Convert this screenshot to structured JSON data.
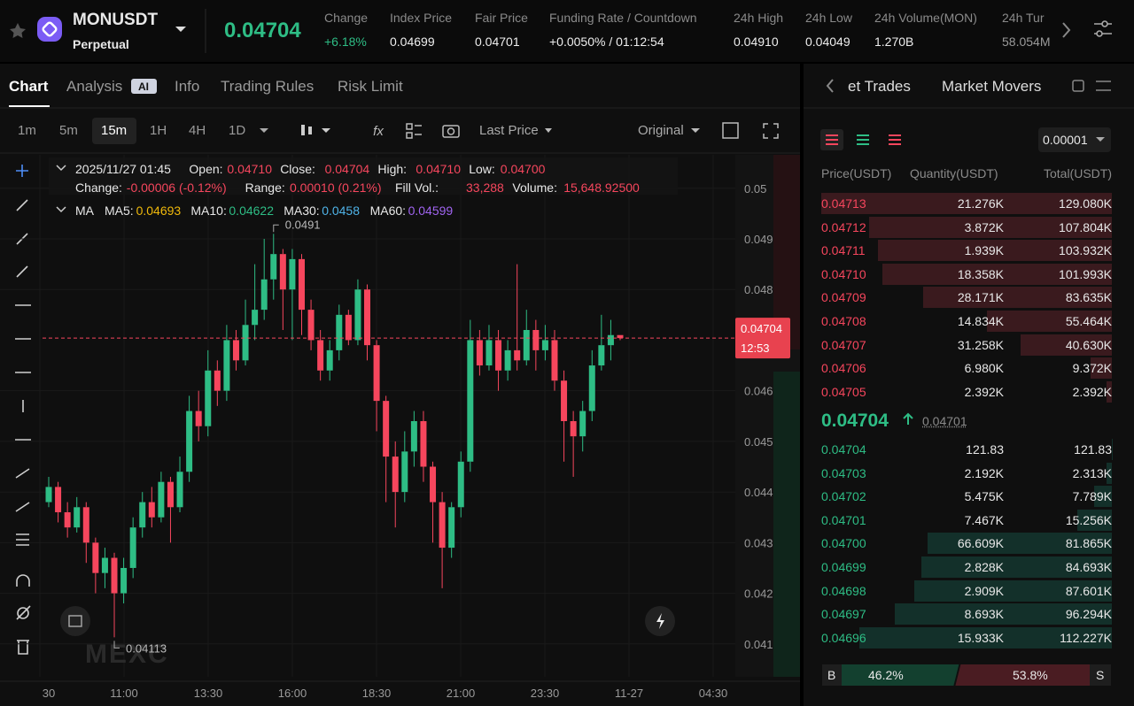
{
  "header": {
    "symbol": "MONUSDT",
    "contract": "Perpetual",
    "last_price": "0.04704",
    "stats": [
      {
        "label": "Change",
        "value": "+6.18%"
      },
      {
        "label": "Index Price",
        "value": "0.04699"
      },
      {
        "label": "Fair Price",
        "value": "0.04701"
      },
      {
        "label": "Funding Rate / Countdown",
        "value": "+0.0050%  /  01:12:54"
      },
      {
        "label": "24h High",
        "value": "0.04910"
      },
      {
        "label": "24h Low",
        "value": "0.04049"
      },
      {
        "label": "24h Volume(MON)",
        "value": "1.270B"
      },
      {
        "label": "24h Tur",
        "value": "58.054M"
      }
    ]
  },
  "tabs": [
    "Chart",
    "Analysis",
    "Info",
    "Trading Rules",
    "Risk Limit"
  ],
  "toolbar": {
    "intervals": [
      "1m",
      "5m",
      "15m",
      "1H",
      "4H",
      "1D"
    ],
    "price_type": "Last Price",
    "view": "Original"
  },
  "chart_info": {
    "time": "2025/11/27 01:45",
    "row1": [
      [
        "Open:",
        "0.04710"
      ],
      [
        "Close:",
        "0.04704"
      ],
      [
        "High:",
        "0.04710"
      ],
      [
        "Low:",
        "0.04700"
      ]
    ],
    "row2": [
      [
        "Change:",
        "-0.00006 (-0.12%)"
      ],
      [
        "Range:",
        "0.00010 (0.21%)"
      ],
      [
        "Fill Vol.:",
        "33,288"
      ],
      [
        "Volume:",
        "15,648.92500"
      ]
    ],
    "ma_title": "MA",
    "ma": [
      [
        "MA5:",
        "0.04693",
        "#f0b90b"
      ],
      [
        "MA10:",
        "0.04622",
        "#2ebd85"
      ],
      [
        "MA30:",
        "0.0458",
        "#4fb3e8"
      ],
      [
        "MA60:",
        "0.04599",
        "#a064f0"
      ]
    ],
    "watermark": "MEXC"
  },
  "chart_data": {
    "type": "candlestick",
    "open": [
      0.0438,
      0.0441,
      0.0436,
      0.0433,
      0.0437,
      0.043,
      0.0424,
      0.0427,
      0.042,
      0.0425,
      0.0433,
      0.0438,
      0.0435,
      0.0442,
      0.0437,
      0.0444,
      0.0456,
      0.0453,
      0.0464,
      0.046,
      0.047,
      0.0466,
      0.0473,
      0.0476,
      0.0482,
      0.0487,
      0.048,
      0.0486,
      0.0476,
      0.047,
      0.0464,
      0.0468,
      0.0475,
      0.047,
      0.048,
      0.0469,
      0.0458,
      0.0447,
      0.044,
      0.0448,
      0.0454,
      0.0445,
      0.0438,
      0.0429,
      0.0437,
      0.0446,
      0.047,
      0.0465,
      0.047,
      0.0464,
      0.0468,
      0.0466,
      0.0472,
      0.0468,
      0.047,
      0.0462,
      0.0454,
      0.0451,
      0.0456,
      0.0465,
      0.0469,
      0.0471
    ],
    "high": [
      0.0443,
      0.0442,
      0.0438,
      0.0439,
      0.0438,
      0.0431,
      0.0429,
      0.0428,
      0.0427,
      0.0435,
      0.044,
      0.0441,
      0.0444,
      0.0443,
      0.0447,
      0.0459,
      0.046,
      0.0468,
      0.0466,
      0.0473,
      0.0472,
      0.0478,
      0.0485,
      0.049,
      0.0491,
      0.0488,
      0.0488,
      0.0487,
      0.0478,
      0.0472,
      0.047,
      0.0477,
      0.0476,
      0.0482,
      0.0481,
      0.047,
      0.0459,
      0.045,
      0.0452,
      0.0456,
      0.0456,
      0.0446,
      0.044,
      0.0438,
      0.0448,
      0.0474,
      0.0472,
      0.0473,
      0.0472,
      0.047,
      0.0485,
      0.0476,
      0.0474,
      0.0473,
      0.0472,
      0.0464,
      0.0456,
      0.0458,
      0.0468,
      0.0475,
      0.0474,
      0.0471
    ],
    "low": [
      0.0437,
      0.0434,
      0.0431,
      0.0432,
      0.0426,
      0.042,
      0.0421,
      0.04113,
      0.0418,
      0.0423,
      0.0431,
      0.0433,
      0.0434,
      0.043,
      0.0436,
      0.0442,
      0.045,
      0.0451,
      0.0457,
      0.0458,
      0.0464,
      0.0465,
      0.047,
      0.0474,
      0.0478,
      0.0472,
      0.047,
      0.0471,
      0.0468,
      0.0462,
      0.0462,
      0.0466,
      0.0469,
      0.0469,
      0.0466,
      0.0452,
      0.0438,
      0.0433,
      0.0438,
      0.0445,
      0.0442,
      0.043,
      0.0421,
      0.0427,
      0.0435,
      0.0444,
      0.0463,
      0.0464,
      0.046,
      0.0462,
      0.0464,
      0.0465,
      0.0464,
      0.0466,
      0.046,
      0.0446,
      0.0443,
      0.0448,
      0.0454,
      0.0464,
      0.0466,
      0.047
    ],
    "close": [
      0.0441,
      0.0436,
      0.0433,
      0.0437,
      0.043,
      0.0424,
      0.0427,
      0.042,
      0.0425,
      0.0433,
      0.0438,
      0.0435,
      0.0442,
      0.0437,
      0.0444,
      0.0456,
      0.0453,
      0.0464,
      0.046,
      0.047,
      0.0466,
      0.0473,
      0.0476,
      0.0482,
      0.0487,
      0.048,
      0.0486,
      0.0476,
      0.047,
      0.0464,
      0.0468,
      0.0475,
      0.047,
      0.048,
      0.0469,
      0.0458,
      0.0447,
      0.044,
      0.0448,
      0.0454,
      0.0445,
      0.0438,
      0.0429,
      0.0437,
      0.0446,
      0.047,
      0.0465,
      0.047,
      0.0464,
      0.0468,
      0.0466,
      0.0472,
      0.0468,
      0.047,
      0.0462,
      0.0454,
      0.0451,
      0.0456,
      0.0465,
      0.0469,
      0.0471,
      0.04704
    ],
    "up_color": "#2ebd85",
    "down_color": "#f6465d",
    "ylim": [
      0.04035,
      0.05066
    ],
    "yticks": [
      0.041,
      0.042,
      0.043,
      0.044,
      0.045,
      0.046,
      0.048,
      0.049,
      0.05
    ],
    "xlabels": [
      "30",
      "11:00",
      "13:30",
      "16:00",
      "18:30",
      "21:00",
      "23:30",
      "11-27",
      "04:30"
    ],
    "grid": true,
    "high_mark": {
      "value": 0.0491,
      "label": "0.0491"
    },
    "low_mark": {
      "value": 0.04113,
      "label": "0.04113"
    },
    "current": {
      "value": 0.04704,
      "label": "0.04704",
      "countdown": "12:53"
    }
  },
  "order_book": {
    "tabs": [
      "et Trades",
      "Market Movers"
    ],
    "precision": "0.00001",
    "columns": [
      "Price(USDT)",
      "Quantity(USDT)",
      "Total(USDT)"
    ],
    "asks": [
      {
        "price": "0.04713",
        "quantity": "21.276K",
        "total": {
          "value": 129080,
          "label": "129.080K"
        }
      },
      {
        "price": "0.04712",
        "quantity": "3.872K",
        "total": {
          "value": 107804,
          "label": "107.804K"
        }
      },
      {
        "price": "0.04711",
        "quantity": "1.939K",
        "total": {
          "value": 103932,
          "label": "103.932K"
        }
      },
      {
        "price": "0.04710",
        "quantity": "18.358K",
        "total": {
          "value": 101993,
          "label": "101.993K"
        }
      },
      {
        "price": "0.04709",
        "quantity": "28.171K",
        "total": {
          "value": 83635,
          "label": "83.635K"
        }
      },
      {
        "price": "0.04708",
        "quantity": "14.834K",
        "total": {
          "value": 55464,
          "label": "55.464K"
        }
      },
      {
        "price": "0.04707",
        "quantity": "31.258K",
        "total": {
          "value": 40630,
          "label": "40.630K"
        }
      },
      {
        "price": "0.04706",
        "quantity": "6.980K",
        "total": {
          "value": 9372,
          "label": "9.372K"
        }
      },
      {
        "price": "0.04705",
        "quantity": "2.392K",
        "total": {
          "value": 2392,
          "label": "2.392K"
        }
      }
    ],
    "mid_price": "0.04704",
    "mark_price": "0.04701",
    "bids": [
      {
        "price": "0.04704",
        "quantity": "121.83",
        "total": {
          "value": 121.83,
          "label": "121.83"
        }
      },
      {
        "price": "0.04703",
        "quantity": "2.192K",
        "total": {
          "value": 2313,
          "label": "2.313K"
        }
      },
      {
        "price": "0.04702",
        "quantity": "5.475K",
        "total": {
          "value": 7789,
          "label": "7.789K"
        }
      },
      {
        "price": "0.04701",
        "quantity": "7.467K",
        "total": {
          "value": 15256,
          "label": "15.256K"
        }
      },
      {
        "price": "0.04700",
        "quantity": "66.609K",
        "total": {
          "value": 81865,
          "label": "81.865K"
        }
      },
      {
        "price": "0.04699",
        "quantity": "2.828K",
        "total": {
          "value": 84693,
          "label": "84.693K"
        }
      },
      {
        "price": "0.04698",
        "quantity": "2.909K",
        "total": {
          "value": 87601,
          "label": "87.601K"
        }
      },
      {
        "price": "0.04697",
        "quantity": "8.693K",
        "total": {
          "value": 96294,
          "label": "96.294K"
        }
      },
      {
        "price": "0.04696",
        "quantity": "15.933K",
        "total": {
          "value": 112227,
          "label": "112.227K"
        }
      }
    ],
    "ratio": {
      "buy_label": "B",
      "sell_label": "S",
      "buy": {
        "value": 46.2,
        "label": "46.2%"
      },
      "sell": {
        "value": 53.8,
        "label": "53.8%"
      }
    }
  }
}
